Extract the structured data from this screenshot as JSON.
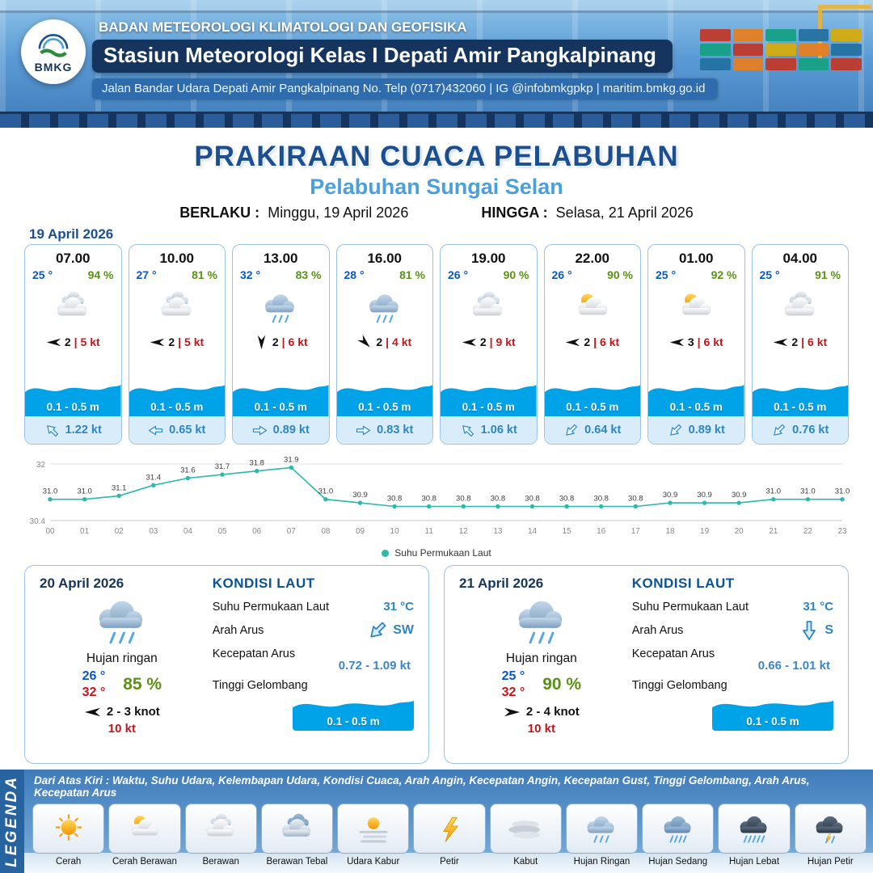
{
  "colors": {
    "accent_blue": "#1b4f91",
    "light_blue": "#4aa0dc",
    "wave_blue": "#00a2e8",
    "temp_blue": "#0a58c5",
    "humidity_green": "#5a9116",
    "speed_red": "#c3161c",
    "chart_teal": "#2bb9a9",
    "header_navy": "#16355e"
  },
  "header": {
    "logo_text": "BMKG",
    "org": "BADAN METEOROLOGI KLIMATOLOGI DAN GEOFISIKA",
    "station": "Stasiun Meteorologi Kelas I Depati Amir Pangkalpinang",
    "address": "Jalan Bandar Udara Depati Amir Pangkalpinang No. Telp (0717)432060 | IG @infobmkgpkp | maritim.bmkg.go.id"
  },
  "title": {
    "main": "PRAKIRAAN CUACA PELABUHAN",
    "subtitle": "Pelabuhan Sungai Selan",
    "berlaku_label": "BERLAKU :",
    "berlaku_value": "Minggu, 19 April 2026",
    "hingga_label": "HINGGA :",
    "hingga_value": "Selasa, 21 April 2026",
    "forecast_date": "19 April 2026"
  },
  "hourly": [
    {
      "time": "07.00",
      "temp": "25 °",
      "humidity": "94 %",
      "icon": "berawan",
      "wind_rot": 180,
      "wind_num": "2",
      "wind_speed": "5 kt",
      "wave": "0.1 - 0.5 m",
      "current_rot": -135,
      "current": "1.22 kt"
    },
    {
      "time": "10.00",
      "temp": "27 °",
      "humidity": "81 %",
      "icon": "berawan",
      "wind_rot": 180,
      "wind_num": "2",
      "wind_speed": "5 kt",
      "wave": "0.1 - 0.5 m",
      "current_rot": 180,
      "current": "0.65 kt"
    },
    {
      "time": "13.00",
      "temp": "32 °",
      "humidity": "83 %",
      "icon": "hujan-ringan",
      "wind_rot": 90,
      "wind_num": "2",
      "wind_speed": "6 kt",
      "wave": "0.1 - 0.5 m",
      "current_rot": 0,
      "current": "0.89 kt"
    },
    {
      "time": "16.00",
      "temp": "28 °",
      "humidity": "81 %",
      "icon": "hujan-ringan",
      "wind_rot": 45,
      "wind_num": "2",
      "wind_speed": "4 kt",
      "wave": "0.1 - 0.5 m",
      "current_rot": 0,
      "current": "0.83 kt"
    },
    {
      "time": "19.00",
      "temp": "26 °",
      "humidity": "90 %",
      "icon": "berawan",
      "wind_rot": 180,
      "wind_num": "2",
      "wind_speed": "9 kt",
      "wave": "0.1 - 0.5 m",
      "current_rot": -135,
      "current": "1.06 kt"
    },
    {
      "time": "22.00",
      "temp": "26 °",
      "humidity": "90 %",
      "icon": "cerah-berawan",
      "wind_rot": 180,
      "wind_num": "2",
      "wind_speed": "6 kt",
      "wave": "0.1 - 0.5 m",
      "current_rot": 135,
      "current": "0.64 kt"
    },
    {
      "time": "01.00",
      "temp": "25 °",
      "humidity": "92 %",
      "icon": "cerah-berawan",
      "wind_rot": 180,
      "wind_num": "3",
      "wind_speed": "6 kt",
      "wave": "0.1 - 0.5 m",
      "current_rot": 135,
      "current": "0.89 kt"
    },
    {
      "time": "04.00",
      "temp": "25 °",
      "humidity": "91 %",
      "icon": "berawan",
      "wind_rot": 180,
      "wind_num": "2",
      "wind_speed": "6 kt",
      "wave": "0.1 - 0.5 m",
      "current_rot": 135,
      "current": "0.76 kt"
    }
  ],
  "chart_data": {
    "type": "line",
    "title": "",
    "xlabel": "",
    "ylabel": "",
    "series_name": "Suhu Permukaan Laut",
    "x": [
      "00",
      "01",
      "02",
      "03",
      "04",
      "05",
      "06",
      "07",
      "08",
      "09",
      "10",
      "11",
      "12",
      "13",
      "14",
      "15",
      "16",
      "17",
      "18",
      "19",
      "20",
      "21",
      "22",
      "23"
    ],
    "values": [
      31.0,
      31.0,
      31.1,
      31.4,
      31.6,
      31.7,
      31.8,
      31.9,
      31.0,
      30.9,
      30.8,
      30.8,
      30.8,
      30.8,
      30.8,
      30.8,
      30.8,
      30.8,
      30.9,
      30.9,
      30.9,
      31.0,
      31.0,
      31.0
    ],
    "ylim": [
      30.4,
      32
    ],
    "grid": false,
    "legend_position": "bottom",
    "line_color": "#2bb9a9"
  },
  "daily": [
    {
      "date": "20 April 2026",
      "icon": "hujan-ringan",
      "condition": "Hujan ringan",
      "temp_min": "26 °",
      "temp_max": "32 °",
      "humidity": "85 %",
      "wind_rot": 180,
      "wind": "2  - 3 knot",
      "gust": "10 kt",
      "sea_title": "KONDISI LAUT",
      "sst_label": "Suhu Permukaan Laut",
      "sst": "31 °C",
      "current_dir_label": "Arah Arus",
      "current_dir": "SW",
      "current_rot": 135,
      "current_speed_label": "Kecepatan Arus",
      "current_speed": "0.72  - 1.09 kt",
      "wave_label": "Tinggi Gelombang",
      "wave": "0.1 - 0.5 m"
    },
    {
      "date": "21 April 2026",
      "icon": "hujan-ringan",
      "condition": "Hujan ringan",
      "temp_min": "25 °",
      "temp_max": "32 °",
      "humidity": "90 %",
      "wind_rot": 0,
      "wind": "2  - 4 knot",
      "gust": "10 kt",
      "sea_title": "KONDISI LAUT",
      "sst_label": "Suhu Permukaan Laut",
      "sst": "31 °C",
      "current_dir_label": "Arah Arus",
      "current_dir": "S",
      "current_rot": 90,
      "current_speed_label": "Kecepatan Arus",
      "current_speed": "0.66  - 1.01 kt",
      "wave_label": "Tinggi Gelombang",
      "wave": "0.1 - 0.5 m"
    }
  ],
  "legend": {
    "title": "LEGENDA",
    "description": "Dari Atas Kiri : Waktu, Suhu Udara, Kelembapan Udara, Kondisi Cuaca, Arah Angin, Kecepatan Angin, Kecepatan Gust, Tinggi Gelombang, Arah Arus, Kecepatan Arus",
    "items": [
      {
        "label": "Cerah",
        "icon": "cerah"
      },
      {
        "label": "Cerah Berawan",
        "icon": "cerah-berawan"
      },
      {
        "label": "Berawan",
        "icon": "berawan"
      },
      {
        "label": "Berawan Tebal",
        "icon": "berawan-tebal"
      },
      {
        "label": "Udara Kabur",
        "icon": "udara-kabur"
      },
      {
        "label": "Petir",
        "icon": "petir"
      },
      {
        "label": "Kabut",
        "icon": "kabut"
      },
      {
        "label": "Hujan Ringan",
        "icon": "hujan-ringan"
      },
      {
        "label": "Hujan Sedang",
        "icon": "hujan-sedang"
      },
      {
        "label": "Hujan Lebat",
        "icon": "hujan-lebat"
      },
      {
        "label": "Hujan Petir",
        "icon": "hujan-petir"
      }
    ]
  }
}
